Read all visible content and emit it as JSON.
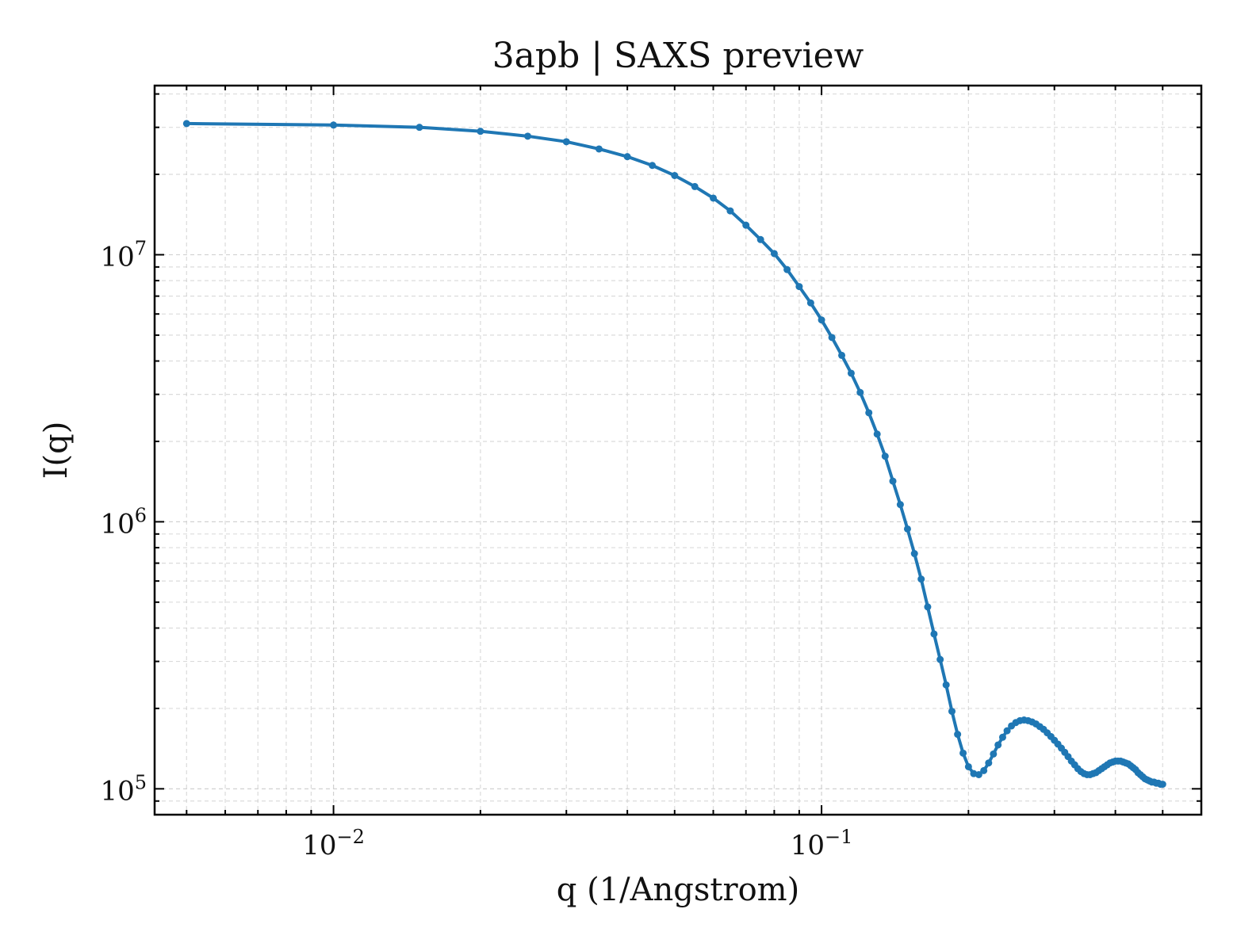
{
  "chart_data": {
    "type": "line",
    "title": "3apb | SAXS preview",
    "xlabel": "q (1/Angstrom)",
    "ylabel": "I(q)",
    "xscale": "log",
    "yscale": "log",
    "xlim": [
      0.0043,
      0.6
    ],
    "ylim": [
      80000,
      43000000
    ],
    "grid": true,
    "legend": "none",
    "x_major_ticks": [
      {
        "value": 0.01,
        "base": "10",
        "exp": "−2"
      },
      {
        "value": 0.1,
        "base": "10",
        "exp": "−1"
      }
    ],
    "y_major_ticks": [
      {
        "value": 100000,
        "base": "10",
        "exp": "5"
      },
      {
        "value": 1000000,
        "base": "10",
        "exp": "6"
      },
      {
        "value": 10000000,
        "base": "10",
        "exp": "7"
      }
    ],
    "series": [
      {
        "color": "#1f77b4",
        "marker": "circle",
        "x": [
          0.005,
          0.01,
          0.015,
          0.02,
          0.025,
          0.03,
          0.035,
          0.04,
          0.045,
          0.05,
          0.055,
          0.06,
          0.065,
          0.07,
          0.075,
          0.08,
          0.085,
          0.09,
          0.095,
          0.1,
          0.105,
          0.11,
          0.115,
          0.12,
          0.125,
          0.13,
          0.135,
          0.14,
          0.145,
          0.15,
          0.155,
          0.16,
          0.165,
          0.17,
          0.175,
          0.18,
          0.185,
          0.19,
          0.195,
          0.2,
          0.205,
          0.21,
          0.215,
          0.22,
          0.225,
          0.23,
          0.235,
          0.24,
          0.245,
          0.25,
          0.255,
          0.26,
          0.265,
          0.27,
          0.275,
          0.28,
          0.285,
          0.29,
          0.295,
          0.3,
          0.305,
          0.31,
          0.315,
          0.32,
          0.325,
          0.33,
          0.335,
          0.34,
          0.345,
          0.35,
          0.355,
          0.36,
          0.365,
          0.37,
          0.375,
          0.38,
          0.385,
          0.39,
          0.395,
          0.4,
          0.405,
          0.41,
          0.415,
          0.42,
          0.425,
          0.43,
          0.435,
          0.44,
          0.445,
          0.45,
          0.455,
          0.46,
          0.465,
          0.47,
          0.475,
          0.48,
          0.485,
          0.49,
          0.495,
          0.5
        ],
        "y": [
          31000000,
          30600000,
          30000000,
          29000000,
          27800000,
          26500000,
          24900000,
          23300000,
          21600000,
          19800000,
          18000000,
          16300000,
          14600000,
          12900000,
          11400000,
          10100000,
          8800000,
          7600000,
          6600000,
          5700000,
          4900000,
          4200000,
          3600000,
          3050000,
          2560000,
          2130000,
          1760000,
          1420000,
          1160000,
          940000,
          760000,
          610000,
          480000,
          380000,
          305000,
          245000,
          195000,
          160000,
          136000,
          121000,
          114000,
          113000,
          117000,
          125000,
          135000,
          146000,
          156000,
          165000,
          172000,
          177000,
          180000,
          181000,
          180000,
          178000,
          175000,
          171000,
          167000,
          162000,
          157000,
          152000,
          147000,
          142000,
          137000,
          132000,
          127000,
          123000,
          119000,
          116000,
          114000,
          113000,
          113000,
          114000,
          115000,
          117000,
          119000,
          121000,
          123000,
          125000,
          126000,
          127000,
          127000,
          127000,
          126000,
          125000,
          124000,
          122000,
          120000,
          118000,
          115000,
          113000,
          111000,
          109000,
          108000,
          107000,
          106000,
          106000,
          105000,
          105000,
          104000,
          104000
        ]
      }
    ]
  }
}
